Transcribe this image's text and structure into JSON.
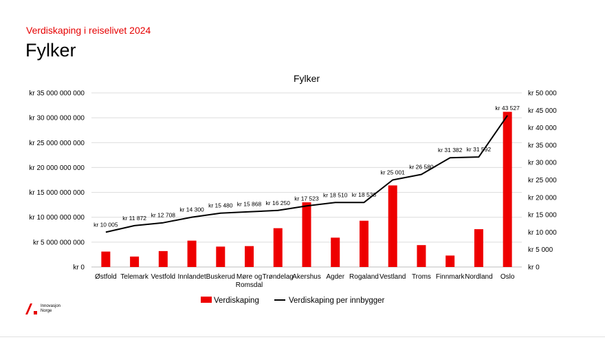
{
  "header": {
    "subtitle": "Verdiskaping i reiselivet 2024",
    "title": "Fylker"
  },
  "logo": {
    "line1": "Innovasjon",
    "line2": "Norge"
  },
  "colors": {
    "accent": "#e60000",
    "bar": "#ee0000",
    "line": "#000000"
  },
  "chart_data": {
    "type": "bar",
    "title": "Fylker",
    "categories": [
      "Østfold",
      "Telemark",
      "Vestfold",
      "Innlandet",
      "Buskerud",
      "Møre og Romsdal",
      "Trøndelag",
      "Akershus",
      "Agder",
      "Rogaland",
      "Vestland",
      "Troms",
      "Finnmark",
      "Nordland",
      "Oslo"
    ],
    "series": [
      {
        "name": "Verdiskaping",
        "type": "bar",
        "axis": "left",
        "values": [
          3100000000,
          2100000000,
          3200000000,
          5300000000,
          4100000000,
          4200000000,
          7800000000,
          13000000000,
          5900000000,
          9300000000,
          16400000000,
          4400000000,
          2300000000,
          7600000000,
          31200000000
        ]
      },
      {
        "name": "Verdiskaping per innbygger",
        "type": "line",
        "axis": "right",
        "values": [
          10005,
          11872,
          12708,
          14300,
          15480,
          15868,
          16250,
          17523,
          18510,
          18538,
          25001,
          26580,
          31382,
          31592,
          43527
        ],
        "labels": [
          "kr 10 005",
          "kr 11 872",
          "kr 12 708",
          "kr 14 300",
          "kr 15 480",
          "kr 15 868",
          "kr 16 250",
          "kr 17 523",
          "kr 18 510",
          "kr 18 538",
          "kr 25 001",
          "kr 26 580",
          "kr 31 382",
          "kr 31 592",
          "kr 43 527"
        ]
      }
    ],
    "y_left": {
      "min": 0,
      "max": 35000000000,
      "step": 5000000000,
      "tick_labels": [
        "kr 0",
        "kr 5 000 000 000",
        "kr 10 000 000 000",
        "kr 15 000 000 000",
        "kr 20 000 000 000",
        "kr 25 000 000 000",
        "kr 30 000 000 000",
        "kr 35 000 000 000"
      ]
    },
    "y_right": {
      "min": 0,
      "max": 50000,
      "step": 5000,
      "tick_labels": [
        "kr 0",
        "kr 5 000",
        "kr 10 000",
        "kr 15 000",
        "kr 20 000",
        "kr 25 000",
        "kr 30 000",
        "kr 35 000",
        "kr 40 000",
        "kr 45 000",
        "kr 50 000"
      ]
    },
    "grid": true,
    "legend": "bottom"
  }
}
